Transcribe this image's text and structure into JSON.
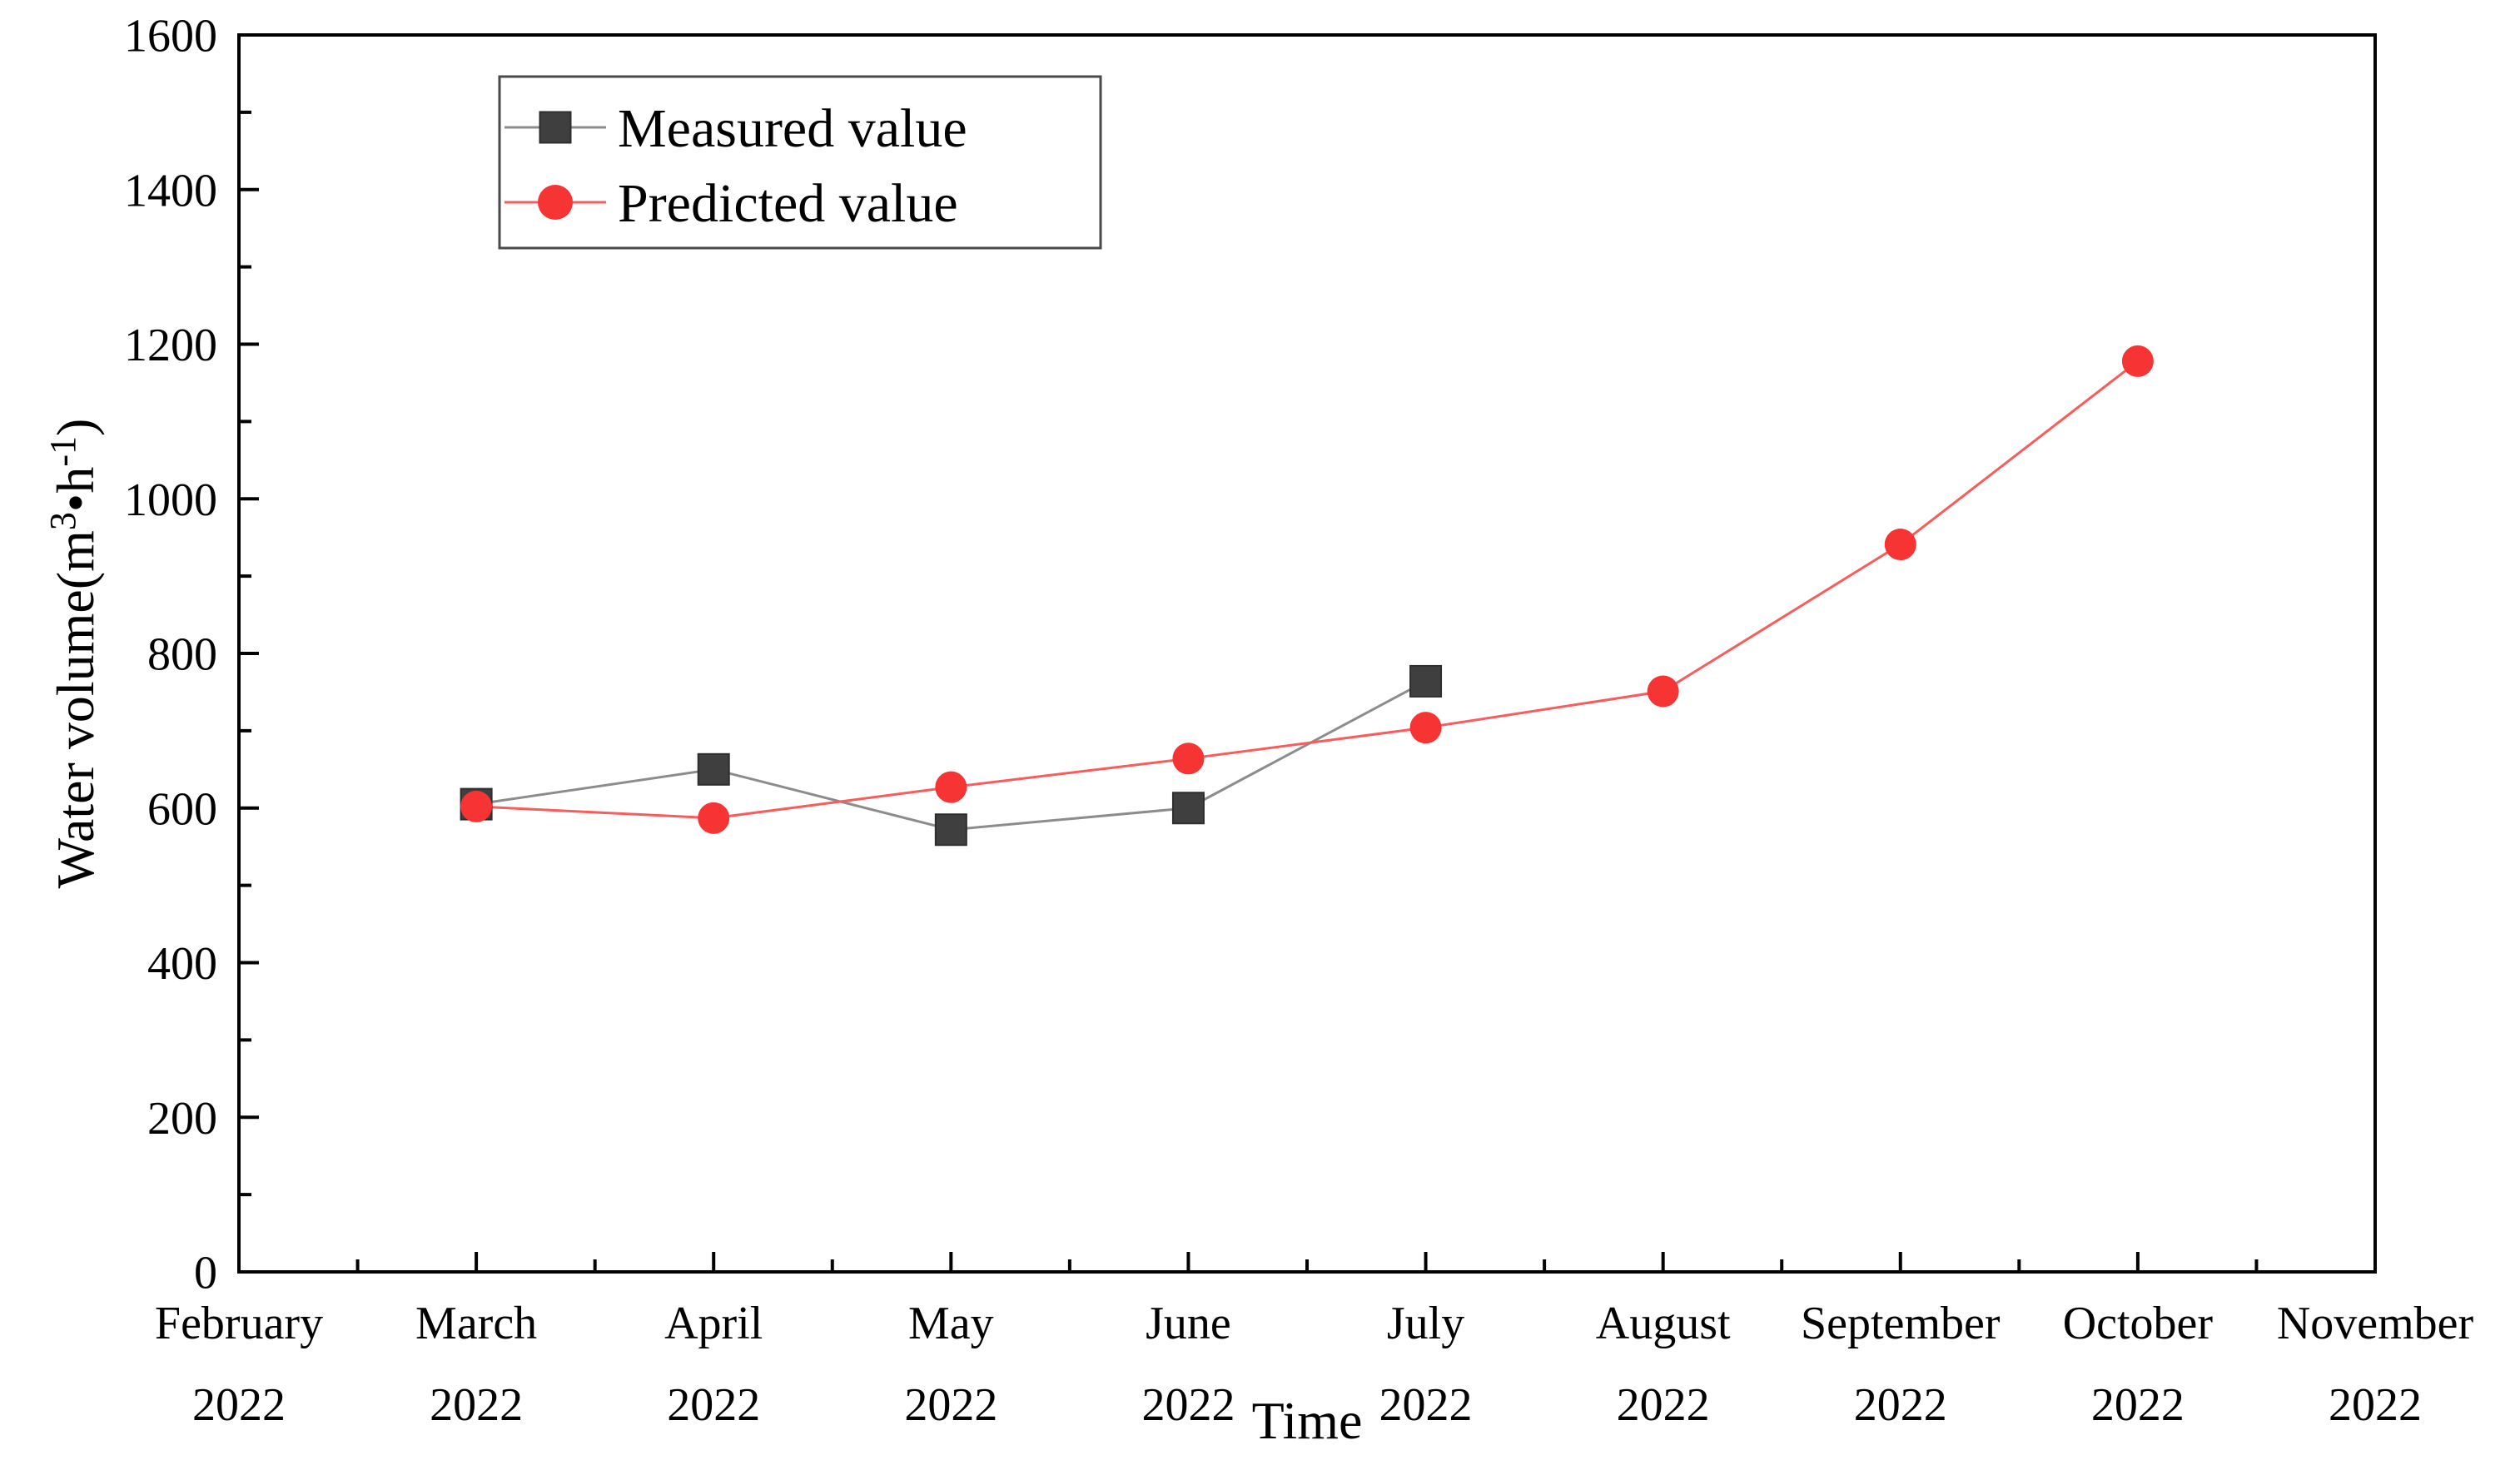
{
  "chart_data": {
    "type": "line",
    "title": "",
    "xlabel": "Time",
    "ylabel": "Water volume(m3•h-1)",
    "ylabel_parts": [
      {
        "text": "Water volume(m",
        "sup": false
      },
      {
        "text": "3",
        "sup": true
      },
      {
        "text": "•h",
        "sup": false
      },
      {
        "text": "-1",
        "sup": true
      },
      {
        "text": ")",
        "sup": false
      }
    ],
    "categories": [
      "February",
      "March",
      "April",
      "May",
      "June",
      "July",
      "August",
      "September",
      "October",
      "November"
    ],
    "category_year": "2022",
    "ylim": [
      0,
      1600
    ],
    "ytick_step": 200,
    "yminor_step": 100,
    "x_has_minor_ticks": true,
    "grid": false,
    "legend_position": "upper-left-inside",
    "legend": {
      "items": [
        "Measured value",
        "Predicted value"
      ]
    },
    "series": [
      {
        "name": "Measured value",
        "marker": "square",
        "line_color": "#8c8c8c",
        "marker_color": "#3f3f3f",
        "marker_edge_color": "#2e2e2e",
        "start_index": 1,
        "values": [
          605,
          650,
          572,
          600,
          764
        ]
      },
      {
        "name": "Predicted value",
        "marker": "circle",
        "line_color": "#f85c5c",
        "marker_color": "#f73434",
        "marker_edge_color": "#f73434",
        "start_index": 1,
        "values": [
          602,
          587,
          627,
          664,
          704,
          751,
          941,
          1178
        ]
      }
    ],
    "axis_color": "#000000",
    "text_color": "#000000",
    "legend_border_color": "#4a4a4a",
    "background": "#ffffff"
  }
}
